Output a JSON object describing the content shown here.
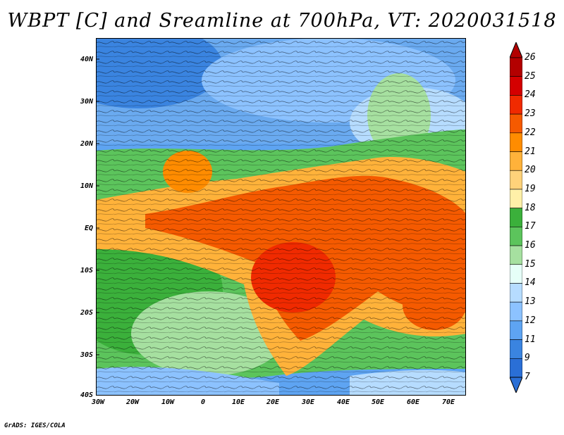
{
  "title": "WBPT [C] and Sreamline at 700hPa, VT: 2020031518",
  "footer": "GrADS: IGES/COLA",
  "lat_labels": [
    "40N",
    "30N",
    "20N",
    "10N",
    "EQ",
    "10S",
    "20S",
    "30S",
    "40S"
  ],
  "lon_labels": [
    "30W",
    "20W",
    "10W",
    "0",
    "10E",
    "20E",
    "30E",
    "40E",
    "50E",
    "60E",
    "70E"
  ],
  "colorbar": {
    "labels": [
      "26",
      "25",
      "24",
      "23",
      "22",
      "21",
      "20",
      "19",
      "18",
      "17",
      "16",
      "15",
      "14",
      "13",
      "12",
      "11",
      "9",
      "7"
    ],
    "colors": [
      "#b30000",
      "#d40000",
      "#f02a00",
      "#f55a00",
      "#ff8c00",
      "#ffb23a",
      "#ffd27a",
      "#fff0a8",
      "#3bb03b",
      "#5cc45c",
      "#a6e0a0",
      "#e6fff8",
      "#b6dcff",
      "#8cc2ff",
      "#5ea4f2",
      "#3a84e0",
      "#2a6fd6"
    ],
    "end_colors": {
      "top": "#b30000",
      "bottom": "#2a6fd6"
    }
  }
}
